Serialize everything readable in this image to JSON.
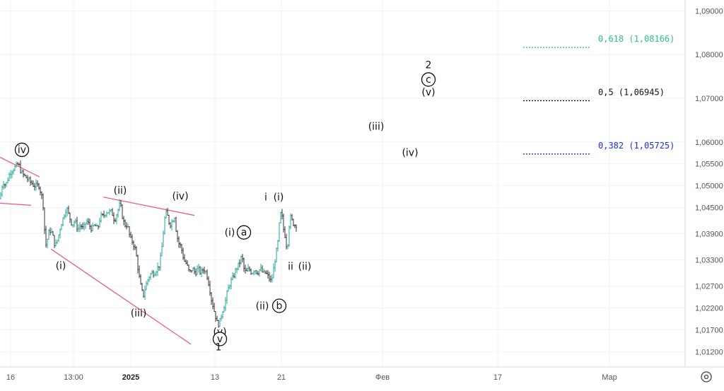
{
  "chart_data": {
    "type": "candlestick",
    "title": "",
    "xlabel": "",
    "ylabel": "",
    "ylim": [
      1.0085,
      1.0925
    ],
    "y_ticks": [
      "1,09000",
      "1,08000",
      "1,07000",
      "1,06000",
      "1,05500",
      "1,05000",
      "1,04500",
      "1,03900",
      "1,03300",
      "1,02700",
      "1,02200",
      "1,01700",
      "1,01200"
    ],
    "x_ticks": [
      "16",
      "13:00",
      "2025",
      "13",
      "21",
      "Фев",
      "17",
      "Мар"
    ],
    "price_path": [
      [
        0,
        1.047
      ],
      [
        4,
        1.051
      ],
      [
        8,
        1.05
      ],
      [
        14,
        1.053
      ],
      [
        20,
        1.054
      ],
      [
        26,
        1.055
      ],
      [
        30,
        1.053
      ],
      [
        36,
        1.052
      ],
      [
        42,
        1.051
      ],
      [
        48,
        1.05
      ],
      [
        55,
        1.05
      ],
      [
        60,
        1.047
      ],
      [
        62,
        1.044
      ],
      [
        64,
        1.036
      ],
      [
        66,
        1.037
      ],
      [
        70,
        1.04
      ],
      [
        74,
        1.039
      ],
      [
        78,
        1.036
      ],
      [
        82,
        1.038
      ],
      [
        86,
        1.041
      ],
      [
        90,
        1.043
      ],
      [
        94,
        1.045
      ],
      [
        98,
        1.043
      ],
      [
        102,
        1.041
      ],
      [
        106,
        1.042
      ],
      [
        110,
        1.04
      ],
      [
        114,
        1.041
      ],
      [
        118,
        1.04
      ],
      [
        122,
        1.042
      ],
      [
        126,
        1.041
      ],
      [
        130,
        1.04
      ],
      [
        134,
        1.041
      ],
      [
        138,
        1.04
      ],
      [
        142,
        1.043
      ],
      [
        146,
        1.043
      ],
      [
        150,
        1.044
      ],
      [
        154,
        1.044
      ],
      [
        158,
        1.044
      ],
      [
        162,
        1.042
      ],
      [
        166,
        1.044
      ],
      [
        170,
        1.046
      ],
      [
        173,
        1.043
      ],
      [
        176,
        1.041
      ],
      [
        180,
        1.041
      ],
      [
        184,
        1.038
      ],
      [
        188,
        1.037
      ],
      [
        192,
        1.035
      ],
      [
        196,
        1.03
      ],
      [
        200,
        1.026
      ],
      [
        203,
        1.025
      ],
      [
        206,
        1.027
      ],
      [
        210,
        1.029
      ],
      [
        214,
        1.03
      ],
      [
        218,
        1.03
      ],
      [
        222,
        1.031
      ],
      [
        226,
        1.032
      ],
      [
        229,
        1.036
      ],
      [
        232,
        1.041
      ],
      [
        234,
        1.044
      ],
      [
        237,
        1.043
      ],
      [
        240,
        1.041
      ],
      [
        244,
        1.042
      ],
      [
        247,
        1.043
      ],
      [
        249,
        1.04
      ],
      [
        252,
        1.037
      ],
      [
        256,
        1.036
      ],
      [
        260,
        1.033
      ],
      [
        264,
        1.032
      ],
      [
        268,
        1.03
      ],
      [
        272,
        1.031
      ],
      [
        276,
        1.03
      ],
      [
        280,
        1.031
      ],
      [
        284,
        1.03
      ],
      [
        288,
        1.031
      ],
      [
        292,
        1.03
      ],
      [
        296,
        1.027
      ],
      [
        299,
        1.024
      ],
      [
        302,
        1.022
      ],
      [
        305,
        1.02
      ],
      [
        308,
        1.018
      ],
      [
        311,
        1.019
      ],
      [
        314,
        1.021
      ],
      [
        318,
        1.023
      ],
      [
        322,
        1.026
      ],
      [
        326,
        1.028
      ],
      [
        330,
        1.029
      ],
      [
        334,
        1.031
      ],
      [
        338,
        1.032
      ],
      [
        342,
        1.034
      ],
      [
        345,
        1.031
      ],
      [
        348,
        1.03
      ],
      [
        352,
        1.031
      ],
      [
        356,
        1.03
      ],
      [
        360,
        1.031
      ],
      [
        364,
        1.03
      ],
      [
        368,
        1.031
      ],
      [
        372,
        1.03
      ],
      [
        376,
        1.03
      ],
      [
        380,
        1.029
      ],
      [
        384,
        1.028
      ],
      [
        387,
        1.031
      ],
      [
        390,
        1.034
      ],
      [
        393,
        1.037
      ],
      [
        396,
        1.043
      ],
      [
        398,
        1.044
      ],
      [
        401,
        1.04
      ],
      [
        404,
        1.038
      ],
      [
        406,
        1.035
      ],
      [
        408,
        1.039
      ],
      [
        410,
        1.043
      ],
      [
        413,
        1.042
      ],
      [
        416,
        1.041
      ],
      [
        419,
        1.041
      ]
    ],
    "trendlines": [
      {
        "color": "#f0506e",
        "from": [
          0,
          1.0565
        ],
        "to": [
          56,
          1.052
        ]
      },
      {
        "color": "#f0506e",
        "from": [
          0,
          1.046
        ],
        "to": [
          44,
          1.0455
        ]
      },
      {
        "color": "#f0506e",
        "from": [
          72,
          1.0355
        ],
        "to": [
          270,
          1.0137
        ]
      },
      {
        "color": "#f0506e",
        "from": [
          146,
          1.0474
        ],
        "to": [
          275,
          1.0432
        ]
      }
    ],
    "fib_levels": [
      {
        "ratio_label": "0,618 (1,08166)",
        "value": 1.08166,
        "color": "#2ec28b"
      },
      {
        "ratio_label": "0,5 (1,06945)",
        "value": 1.06945,
        "color": "#111111"
      },
      {
        "ratio_label": "0,382 (1,05725)",
        "value": 1.05725,
        "color": "#1c2fe0"
      }
    ],
    "wave_labels": [
      {
        "text": "iv",
        "circled": true,
        "color": "#111111",
        "x": 31,
        "y": 1.0582
      },
      {
        "text": "(ii)",
        "circled": false,
        "color": "#111111",
        "x": 170,
        "y": 1.049
      },
      {
        "text": "(iv)",
        "circled": false,
        "color": "#111111",
        "x": 255,
        "y": 1.0477
      },
      {
        "text": "i",
        "circled": false,
        "color": "#e53950",
        "x": 376,
        "y": 1.0474
      },
      {
        "text": "(i)",
        "circled": false,
        "color": "#111111",
        "x": 394,
        "y": 1.0474
      },
      {
        "text": "(i)",
        "circled": false,
        "color": "#e53950",
        "x": 325,
        "y": 1.0393
      },
      {
        "text": "a",
        "circled": true,
        "color": "#111111",
        "x": 345,
        "y": 1.0393
      },
      {
        "text": "(i)",
        "circled": false,
        "color": "#111111",
        "x": 86,
        "y": 1.0317
      },
      {
        "text": "ii",
        "circled": false,
        "color": "#e53950",
        "x": 411,
        "y": 1.0316
      },
      {
        "text": "(ii)",
        "circled": false,
        "color": "#111111",
        "x": 431,
        "y": 1.0316
      },
      {
        "text": "(ii)",
        "circled": false,
        "color": "#e53950",
        "x": 371,
        "y": 1.0225
      },
      {
        "text": "b",
        "circled": true,
        "color": "#111111",
        "x": 395,
        "y": 1.0225
      },
      {
        "text": "(iii)",
        "circled": false,
        "color": "#111111",
        "x": 196,
        "y": 1.0209
      },
      {
        "text": "(v)",
        "circled": false,
        "color": "#111111",
        "x": 311,
        "y": 1.0166
      },
      {
        "text": "v",
        "circled": true,
        "color": "#111111",
        "x": 311,
        "y": 1.0149
      },
      {
        "text": "1",
        "circled": false,
        "color": "#111111",
        "x": 309,
        "y": 1.0131
      },
      {
        "text": "(iii)",
        "circled": false,
        "color": "#111111",
        "x": 532,
        "y": 1.0636
      },
      {
        "text": "(iv)",
        "circled": false,
        "color": "#111111",
        "x": 580,
        "y": 1.0576
      },
      {
        "text": "2",
        "circled": false,
        "color": "#111111",
        "x": 606,
        "y": 1.0777
      },
      {
        "text": "c",
        "circled": true,
        "color": "#111111",
        "x": 606,
        "y": 1.0743
      },
      {
        "text": "(v)",
        "circled": false,
        "color": "#111111",
        "x": 606,
        "y": 1.0715
      }
    ],
    "colors": {
      "up": "#26a69a",
      "down": "#333333",
      "trend": "#f0506e"
    }
  }
}
